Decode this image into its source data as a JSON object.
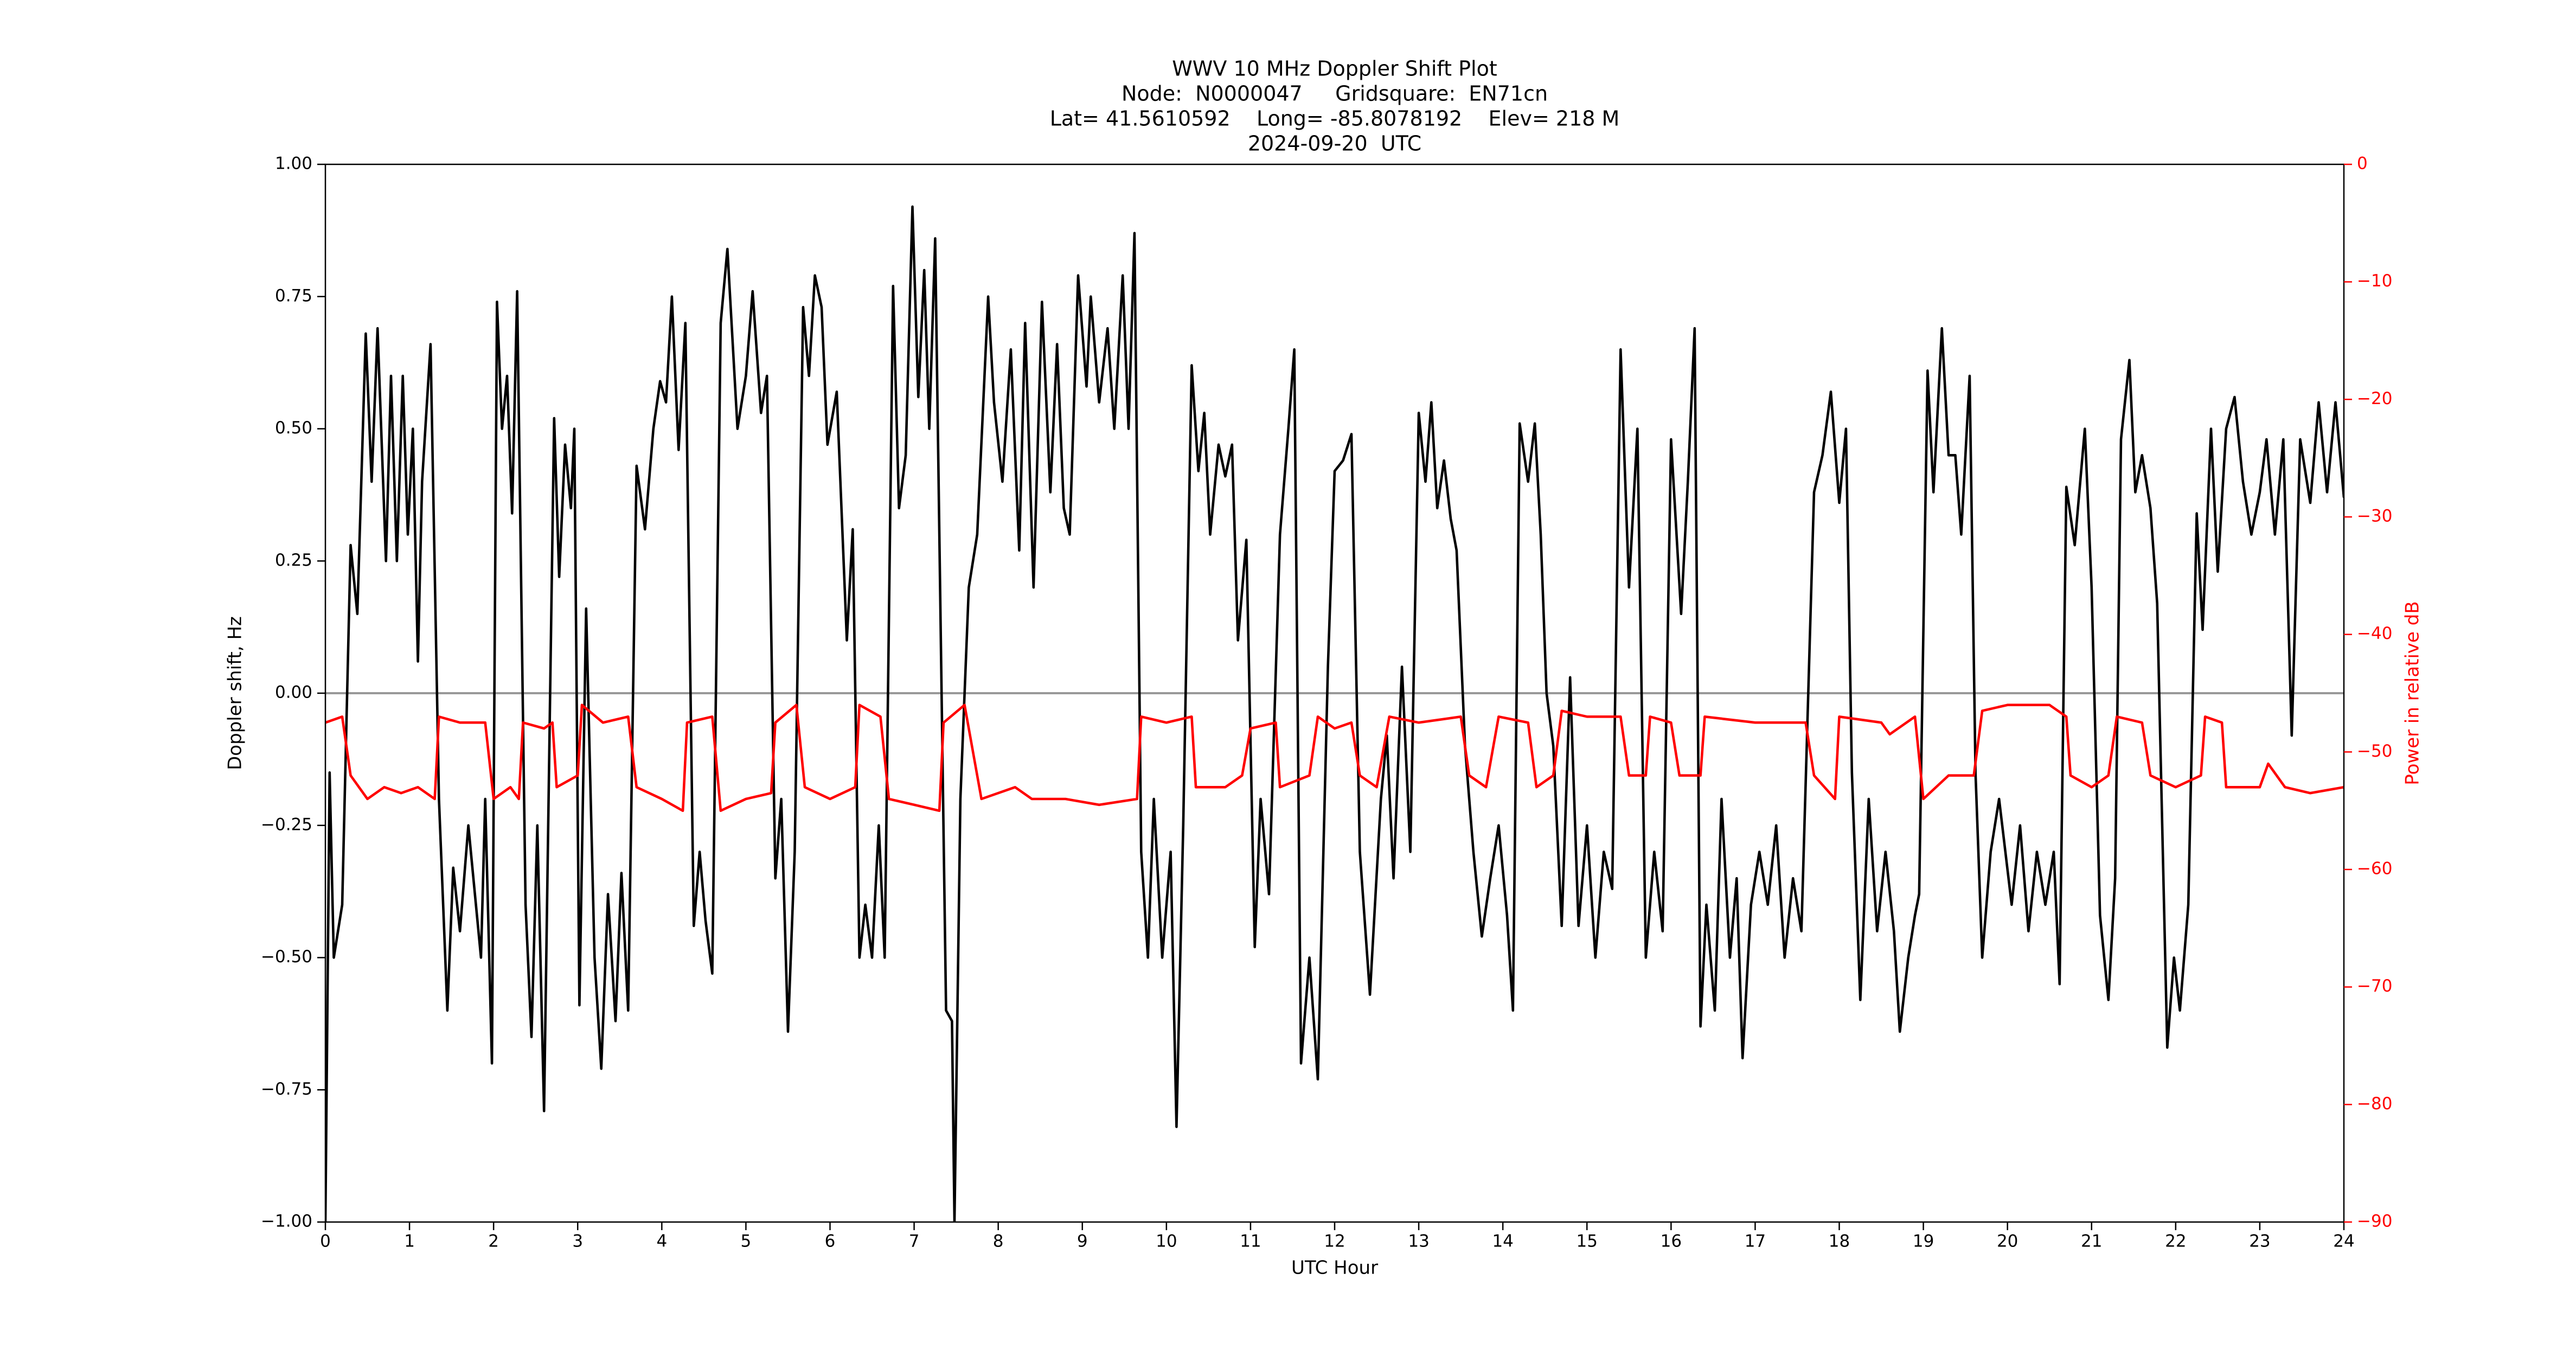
{
  "chart_data": {
    "type": "line",
    "title": [
      "WWV 10 MHz Doppler Shift Plot",
      "Node:  N0000047     Gridsquare:  EN71cn",
      "Lat= 41.5610592    Long= -85.8078192    Elev= 218 M",
      "2024-09-20  UTC"
    ],
    "xlabel": "UTC Hour",
    "ylabel": "Doppler shift, Hz",
    "y2label": "Power in relative dB",
    "xlim": [
      0,
      24
    ],
    "xticks": [
      0,
      1,
      2,
      3,
      4,
      5,
      6,
      7,
      8,
      9,
      10,
      11,
      12,
      13,
      14,
      15,
      16,
      17,
      18,
      19,
      20,
      21,
      22,
      23,
      24
    ],
    "ylim": [
      -1,
      1
    ],
    "yticks": [
      {
        "value": -1,
        "label": "−1.00"
      },
      {
        "value": -0.75,
        "label": "−0.75"
      },
      {
        "value": -0.5,
        "label": "−0.50"
      },
      {
        "value": -0.25,
        "label": "−0.25"
      },
      {
        "value": 0,
        "label": "0.00"
      },
      {
        "value": 0.25,
        "label": "0.25"
      },
      {
        "value": 0.5,
        "label": "0.50"
      },
      {
        "value": 0.75,
        "label": "0.75"
      },
      {
        "value": 1,
        "label": "1.00"
      }
    ],
    "y2lim": [
      -90,
      0
    ],
    "y2ticks": [
      {
        "value": -90,
        "label": "−90"
      },
      {
        "value": -80,
        "label": "−80"
      },
      {
        "value": -70,
        "label": "−70"
      },
      {
        "value": -60,
        "label": "−60"
      },
      {
        "value": -50,
        "label": "−50"
      },
      {
        "value": -40,
        "label": "−40"
      },
      {
        "value": -30,
        "label": "−30"
      },
      {
        "value": -20,
        "label": "−20"
      },
      {
        "value": -10,
        "label": "−10"
      },
      0
    ],
    "reference_line": 0,
    "reference_color": "#999999",
    "series": [
      {
        "color": "#000000",
        "x": [
          0,
          0.05,
          0.1,
          0.2,
          0.3,
          0.38,
          0.48,
          0.55,
          0.62,
          0.72,
          0.78,
          0.85,
          0.92,
          0.98,
          1.04,
          1.1,
          1.15,
          1.25,
          1.35,
          1.45,
          1.52,
          1.6,
          1.7,
          1.85,
          1.9,
          1.98,
          2.04,
          2.1,
          2.16,
          2.22,
          2.28,
          2.38,
          2.45,
          2.52,
          2.6,
          2.72,
          2.78,
          2.85,
          2.92,
          2.96,
          3.02,
          3.1,
          3.2,
          3.28,
          3.36,
          3.45,
          3.52,
          3.6,
          3.7,
          3.8,
          3.9,
          3.98,
          4.05,
          4.12,
          4.2,
          4.28,
          4.38,
          4.45,
          4.52,
          4.6,
          4.7,
          4.78,
          4.9,
          5.0,
          5.08,
          5.18,
          5.25,
          5.35,
          5.42,
          5.5,
          5.58,
          5.68,
          5.75,
          5.82,
          5.9,
          5.97,
          6.08,
          6.2,
          6.27,
          6.35,
          6.42,
          6.5,
          6.58,
          6.65,
          6.75,
          6.82,
          6.9,
          6.98,
          7.05,
          7.12,
          7.18,
          7.25,
          7.38,
          7.45,
          7.48,
          7.55,
          7.65,
          7.75,
          7.88,
          7.95,
          8.05,
          8.15,
          8.25,
          8.32,
          8.42,
          8.52,
          8.62,
          8.7,
          8.78,
          8.85,
          8.95,
          9.05,
          9.1,
          9.2,
          9.3,
          9.38,
          9.48,
          9.55,
          9.62,
          9.7,
          9.78,
          9.85,
          9.95,
          10.05,
          10.12,
          10.2,
          10.3,
          10.38,
          10.45,
          10.52,
          10.62,
          10.7,
          10.78,
          10.85,
          10.95,
          11.05,
          11.12,
          11.22,
          11.35,
          11.45,
          11.52,
          11.6,
          11.7,
          11.8,
          11.92,
          12.0,
          12.1,
          12.2,
          12.3,
          12.42,
          12.55,
          12.62,
          12.7,
          12.8,
          12.9,
          13.0,
          13.08,
          13.15,
          13.22,
          13.3,
          13.38,
          13.45,
          13.55,
          13.65,
          13.75,
          13.85,
          13.95,
          14.05,
          14.12,
          14.2,
          14.3,
          14.38,
          14.45,
          14.52,
          14.6,
          14.7,
          14.8,
          14.9,
          15.0,
          15.1,
          15.2,
          15.3,
          15.4,
          15.5,
          15.6,
          15.7,
          15.8,
          15.9,
          16.0,
          16.12,
          16.2,
          16.28,
          16.35,
          16.42,
          16.52,
          16.6,
          16.7,
          16.78,
          16.85,
          16.95,
          17.05,
          17.15,
          17.25,
          17.35,
          17.45,
          17.55,
          17.7,
          17.8,
          17.9,
          18.0,
          18.08,
          18.15,
          18.25,
          18.35,
          18.45,
          18.55,
          18.65,
          18.72,
          18.82,
          18.9,
          18.95,
          19.05,
          19.12,
          19.22,
          19.3,
          19.38,
          19.45,
          19.55,
          19.62,
          19.7,
          19.8,
          19.9,
          20.05,
          20.15,
          20.25,
          20.35,
          20.45,
          20.55,
          20.62,
          20.7,
          20.8,
          20.92,
          21.0,
          21.1,
          21.2,
          21.28,
          21.35,
          21.45,
          21.52,
          21.6,
          21.7,
          21.78,
          21.9,
          21.98,
          22.05,
          22.15,
          22.25,
          22.32,
          22.42,
          22.5,
          22.6,
          22.7,
          22.8,
          22.9,
          23.0,
          23.08,
          23.18,
          23.28,
          23.38,
          23.48,
          23.6,
          23.7,
          23.8,
          23.9,
          24.0
        ],
        "values": [
          -1.0,
          -0.15,
          -0.5,
          -0.4,
          0.28,
          0.15,
          0.68,
          0.4,
          0.69,
          0.25,
          0.6,
          0.25,
          0.6,
          0.3,
          0.5,
          0.06,
          0.4,
          0.66,
          -0.2,
          -0.6,
          -0.33,
          -0.45,
          -0.25,
          -0.5,
          -0.2,
          -0.7,
          0.74,
          0.5,
          0.6,
          0.34,
          0.76,
          -0.4,
          -0.65,
          -0.25,
          -0.79,
          0.52,
          0.22,
          0.47,
          0.35,
          0.5,
          -0.59,
          0.16,
          -0.5,
          -0.71,
          -0.38,
          -0.62,
          -0.34,
          -0.6,
          0.43,
          0.31,
          0.5,
          0.59,
          0.55,
          0.75,
          0.46,
          0.7,
          -0.44,
          -0.3,
          -0.43,
          -0.53,
          0.7,
          0.84,
          0.5,
          0.6,
          0.76,
          0.53,
          0.6,
          -0.35,
          -0.2,
          -0.64,
          -0.3,
          0.73,
          0.6,
          0.79,
          0.73,
          0.47,
          0.57,
          0.1,
          0.31,
          -0.5,
          -0.4,
          -0.5,
          -0.25,
          -0.5,
          0.77,
          0.35,
          0.45,
          0.92,
          0.56,
          0.8,
          0.5,
          0.86,
          -0.6,
          -0.62,
          -1.0,
          -0.2,
          0.2,
          0.3,
          0.75,
          0.55,
          0.4,
          0.65,
          0.27,
          0.7,
          0.2,
          0.74,
          0.38,
          0.66,
          0.35,
          0.3,
          0.79,
          0.58,
          0.75,
          0.55,
          0.69,
          0.5,
          0.79,
          0.5,
          0.87,
          -0.3,
          -0.5,
          -0.2,
          -0.5,
          -0.3,
          -0.82,
          -0.25,
          0.62,
          0.42,
          0.53,
          0.3,
          0.47,
          0.41,
          0.47,
          0.1,
          0.29,
          -0.48,
          -0.2,
          -0.38,
          0.3,
          0.5,
          0.65,
          -0.7,
          -0.5,
          -0.73,
          0.05,
          0.42,
          0.44,
          0.49,
          -0.3,
          -0.57,
          -0.2,
          -0.08,
          -0.35,
          0.05,
          -0.3,
          0.53,
          0.4,
          0.55,
          0.35,
          0.44,
          0.33,
          0.27,
          -0.1,
          -0.3,
          -0.46,
          -0.35,
          -0.25,
          -0.42,
          -0.6,
          0.51,
          0.4,
          0.51,
          0.3,
          0.0,
          -0.1,
          -0.44,
          0.03,
          -0.44,
          -0.25,
          -0.5,
          -0.3,
          -0.37,
          0.65,
          0.2,
          0.5,
          -0.5,
          -0.3,
          -0.45,
          0.48,
          0.15,
          0.4,
          0.69,
          -0.63,
          -0.4,
          -0.6,
          -0.2,
          -0.5,
          -0.35,
          -0.69,
          -0.4,
          -0.3,
          -0.4,
          -0.25,
          -0.5,
          -0.35,
          -0.45,
          0.38,
          0.45,
          0.57,
          0.36,
          0.5,
          -0.15,
          -0.58,
          -0.2,
          -0.45,
          -0.3,
          -0.45,
          -0.64,
          -0.5,
          -0.42,
          -0.38,
          0.61,
          0.38,
          0.69,
          0.45,
          0.45,
          0.3,
          0.6,
          -0.15,
          -0.5,
          -0.3,
          -0.2,
          -0.4,
          -0.25,
          -0.45,
          -0.3,
          -0.4,
          -0.3,
          -0.55,
          0.39,
          0.28,
          0.5,
          0.2,
          -0.42,
          -0.58,
          -0.35,
          0.48,
          0.63,
          0.38,
          0.45,
          0.35,
          0.17,
          -0.67,
          -0.5,
          -0.6,
          -0.4,
          0.34,
          0.12,
          0.5,
          0.23,
          0.5,
          0.56,
          0.4,
          0.3,
          0.38,
          0.48,
          0.3,
          0.48,
          -0.08,
          0.48,
          0.36,
          0.55,
          0.38,
          0.55,
          0.37
        ]
      },
      {
        "color": "#ff0000",
        "axis": "y2",
        "x": [
          0,
          0.2,
          0.3,
          0.5,
          0.7,
          0.9,
          1.1,
          1.3,
          1.35,
          1.6,
          1.9,
          2.0,
          2.2,
          2.3,
          2.35,
          2.6,
          2.7,
          2.75,
          3.0,
          3.05,
          3.3,
          3.6,
          3.7,
          4.0,
          4.25,
          4.3,
          4.6,
          4.7,
          5.0,
          5.3,
          5.35,
          5.6,
          5.7,
          6.0,
          6.3,
          6.35,
          6.6,
          6.7,
          7.0,
          7.3,
          7.35,
          7.6,
          7.8,
          8.2,
          8.4,
          8.8,
          9.2,
          9.65,
          9.7,
          10.0,
          10.3,
          10.35,
          10.7,
          10.9,
          11.0,
          11.3,
          11.35,
          11.7,
          11.8,
          12.0,
          12.2,
          12.3,
          12.5,
          12.65,
          13.0,
          13.5,
          13.6,
          13.8,
          13.95,
          14.3,
          14.4,
          14.6,
          14.7,
          15.0,
          15.4,
          15.5,
          15.7,
          15.75,
          16.0,
          16.1,
          16.35,
          16.4,
          17.0,
          17.6,
          17.7,
          17.95,
          18.0,
          18.5,
          18.6,
          18.9,
          19.0,
          19.3,
          19.6,
          19.7,
          20.0,
          20.5,
          20.7,
          20.75,
          21.0,
          21.2,
          21.3,
          21.6,
          21.7,
          22.0,
          22.3,
          22.35,
          22.55,
          22.6,
          23.0,
          23.1,
          23.3,
          23.6,
          24.0
        ],
        "values": [
          -47.5,
          -47,
          -52,
          -54,
          -53,
          -53.5,
          -53,
          -54,
          -47,
          -47.5,
          -47.5,
          -54,
          -53,
          -54,
          -47.5,
          -48,
          -47.5,
          -53,
          -52,
          -46,
          -47.5,
          -47,
          -53,
          -54,
          -55,
          -47.5,
          -47,
          -55,
          -54,
          -53.5,
          -47.5,
          -46,
          -53,
          -54,
          -53,
          -46,
          -47,
          -54,
          -54.5,
          -55,
          -47.5,
          -46,
          -54,
          -53,
          -54,
          -54,
          -54.5,
          -54,
          -47,
          -47.5,
          -47,
          -53,
          -53,
          -52,
          -48,
          -47.5,
          -53,
          -52,
          -47,
          -48,
          -47.5,
          -52,
          -53,
          -47,
          -47.5,
          -47,
          -52,
          -53,
          -47,
          -47.5,
          -53,
          -52,
          -46.5,
          -47,
          -47,
          -52,
          -52,
          -47,
          -47.5,
          -52,
          -52,
          -47,
          -47.5,
          -47.5,
          -52,
          -54,
          -47,
          -47.5,
          -48.5,
          -47,
          -54,
          -52,
          -52,
          -46.5,
          -46,
          -46,
          -47,
          -52,
          -53,
          -52,
          -47,
          -47.5,
          -52,
          -53,
          -52,
          -47,
          -47.5,
          -53,
          -53,
          -51,
          -53,
          -53.5,
          -53
        ]
      }
    ]
  }
}
